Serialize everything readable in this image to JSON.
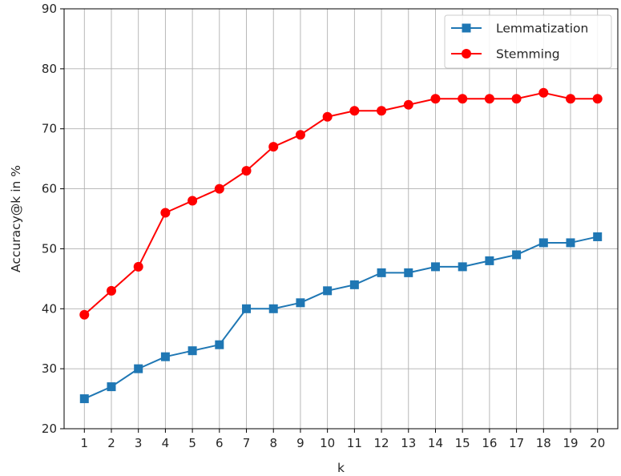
{
  "chart_data": {
    "type": "line",
    "title": "",
    "xlabel": "k",
    "ylabel": "Accuracy@k in %",
    "x": [
      1,
      2,
      3,
      4,
      5,
      6,
      7,
      8,
      9,
      10,
      11,
      12,
      13,
      14,
      15,
      16,
      17,
      18,
      19,
      20
    ],
    "xlim": [
      0.25,
      20.75
    ],
    "ylim": [
      20,
      90
    ],
    "yticks": [
      20,
      30,
      40,
      50,
      60,
      70,
      80,
      90
    ],
    "grid": true,
    "legend_position": "top-right",
    "series": [
      {
        "name": "Lemmatization",
        "color": "#1f77b4",
        "marker": "square",
        "values": [
          25,
          27,
          30,
          32,
          33,
          34,
          40,
          40,
          41,
          43,
          44,
          46,
          46,
          47,
          47,
          48,
          49,
          51,
          51,
          52
        ]
      },
      {
        "name": "Stemming",
        "color": "#ff0000",
        "marker": "circle",
        "values": [
          39,
          43,
          47,
          56,
          58,
          60,
          63,
          67,
          69,
          72,
          73,
          73,
          74,
          75,
          75,
          75,
          75,
          76,
          75,
          75
        ]
      }
    ]
  }
}
